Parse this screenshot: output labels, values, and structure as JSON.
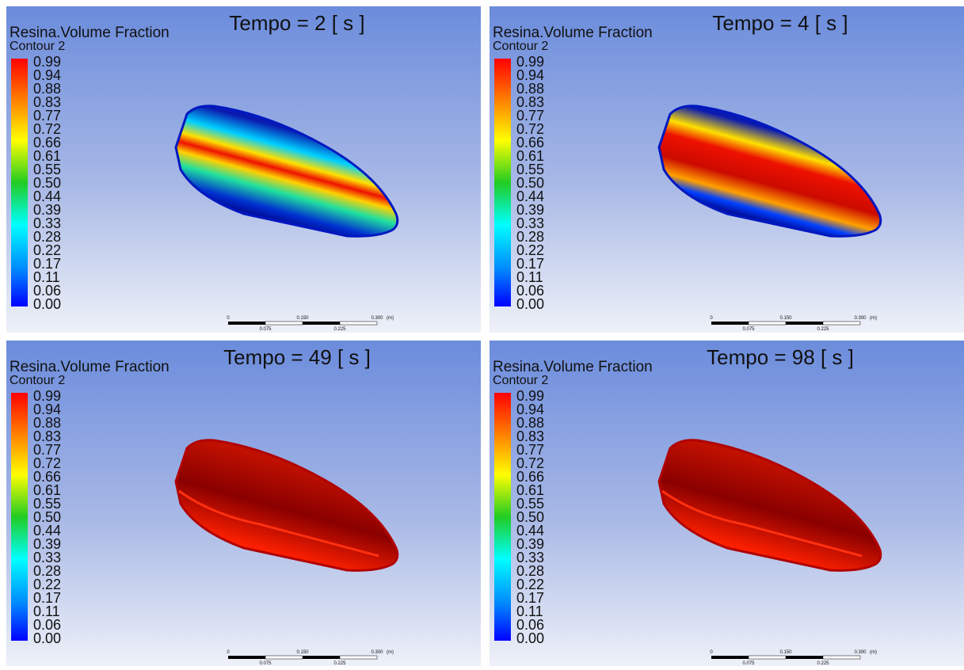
{
  "panels": [
    {
      "title": "Tempo = 2 [ s ]"
    },
    {
      "title": "Tempo = 4 [ s ]"
    },
    {
      "title": "Tempo = 49 [ s ]"
    },
    {
      "title": "Tempo = 98 [ s ]"
    }
  ],
  "legend": {
    "title": "Resina.Volume Fraction",
    "subtitle": "Contour 2",
    "ticks": [
      "0.99",
      "0.94",
      "0.88",
      "0.83",
      "0.77",
      "0.72",
      "0.66",
      "0.61",
      "0.55",
      "0.50",
      "0.44",
      "0.39",
      "0.33",
      "0.28",
      "0.22",
      "0.17",
      "0.11",
      "0.06",
      "0.00"
    ]
  },
  "scale": {
    "top": [
      "0",
      "0.150",
      "0.300",
      "(m)"
    ],
    "bottom": [
      "0.075",
      "0.225"
    ]
  }
}
